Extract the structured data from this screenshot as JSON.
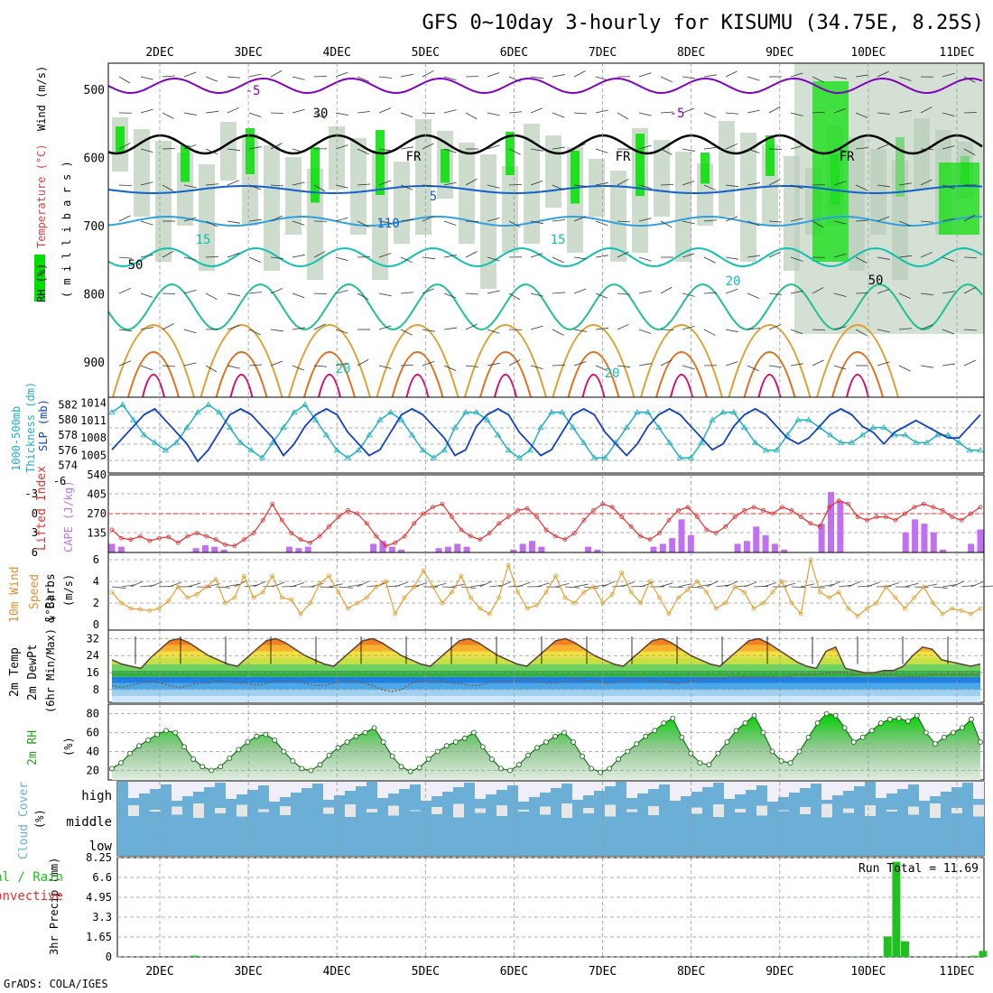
{
  "title": "GFS 0~10day 3-hourly for KISUMU (34.75E, 8.25S)",
  "footer": "GrADS: COLA/IGES",
  "date_labels": [
    "2DEC",
    "3DEC",
    "4DEC",
    "5DEC",
    "6DEC",
    "7DEC",
    "8DEC",
    "9DEC",
    "10DEC",
    "11DEC"
  ],
  "colors": {
    "rh_green": "#00e000",
    "temp_purple": "#8000c0",
    "temp_blue": "#1060d0",
    "temp_cyan": "#10c0b0",
    "cape_purple": "#c070f0",
    "lifted_red": "#e03030",
    "wind_orange": "#e0a030",
    "cloud_blue": "#6baed6",
    "rain_green": "#20c020"
  },
  "chart_data": [
    {
      "type": "heatmap",
      "panel": "upper-air",
      "ylabel_parts": [
        "RH (%)",
        "Temperature (°C)",
        "Wind (m/s)"
      ],
      "ylabel_units": "( m i l l i b a r s )",
      "y_ticks": [
        500,
        600,
        700,
        800,
        900
      ],
      "contour_labels": [
        "-5",
        "-5",
        "5",
        "110",
        "15",
        "15",
        "20",
        "20",
        "20",
        "FR",
        "FR",
        "FR",
        "30",
        "50",
        "50"
      ]
    },
    {
      "type": "line",
      "panel": "slp-thickness",
      "ylabel_left": "Thickness (dm)",
      "ylabel_left_parts": [
        "1000-500mb",
        "Thickness (dm)"
      ],
      "ylabel_right": "SLP (mb)",
      "left_ticks": [
        582,
        580,
        578,
        576,
        574
      ],
      "right_ticks": [
        1014,
        1011,
        1008,
        1005
      ],
      "series": [
        {
          "name": "SLP (mb)",
          "values": [
            1006,
            1008,
            1010,
            1012,
            1013,
            1011,
            1009,
            1007,
            1004,
            1006,
            1009,
            1012,
            1013,
            1012,
            1010,
            1008,
            1005,
            1007,
            1010,
            1012,
            1013,
            1012,
            1009,
            1007,
            1005,
            1006,
            1009,
            1012,
            1013,
            1012,
            1010,
            1008,
            1005,
            1006,
            1010,
            1012,
            1013,
            1012,
            1009,
            1007,
            1005,
            1006,
            1009,
            1012,
            1013,
            1012,
            1009,
            1007,
            1005,
            1007,
            1010,
            1012,
            1013,
            1012,
            1010,
            1008,
            1006,
            1007,
            1010,
            1012,
            1013,
            1012,
            1010,
            1008,
            1007,
            1008,
            1010,
            1012,
            1013,
            1012,
            1010,
            1009,
            1007,
            1009,
            1010,
            1011,
            1010,
            1009,
            1008,
            1008,
            1010,
            1012
          ]
        },
        {
          "name": "1000-500mb Thickness (dm)",
          "values": [
            581,
            582,
            580,
            578,
            577,
            576,
            577,
            579,
            581,
            582,
            581,
            579,
            577,
            576,
            575,
            577,
            579,
            581,
            582,
            580,
            578,
            576,
            575,
            576,
            578,
            580,
            581,
            580,
            578,
            576,
            575,
            576,
            579,
            581,
            581,
            580,
            578,
            576,
            575,
            576,
            579,
            581,
            581,
            579,
            577,
            575,
            575,
            577,
            579,
            581,
            581,
            579,
            577,
            575,
            575,
            577,
            580,
            581,
            581,
            579,
            577,
            576,
            576,
            578,
            580,
            580,
            579,
            578,
            577,
            577,
            578,
            579,
            579,
            578,
            578,
            577,
            577,
            578,
            578,
            577,
            576,
            576
          ]
        }
      ]
    },
    {
      "type": "bar",
      "panel": "cape-lifted-index",
      "ylabel_left": "Lifted Index",
      "ylabel_right": "CAPE (J/kg)",
      "left_ticks": [
        "-3",
        "0",
        "3",
        "6"
      ],
      "left_top_label": "-6",
      "right_ticks": [
        540,
        405,
        270,
        135
      ],
      "ylim": [
        0,
        540
      ],
      "series": [
        {
          "name": "CAPE (J/kg)",
          "values": [
            60,
            40,
            0,
            0,
            0,
            0,
            0,
            0,
            0,
            30,
            50,
            40,
            20,
            0,
            0,
            0,
            0,
            0,
            0,
            40,
            30,
            40,
            0,
            0,
            0,
            0,
            0,
            0,
            60,
            80,
            40,
            20,
            0,
            0,
            0,
            30,
            40,
            60,
            40,
            0,
            0,
            0,
            0,
            20,
            60,
            80,
            40,
            0,
            0,
            0,
            0,
            40,
            20,
            0,
            0,
            0,
            0,
            0,
            40,
            60,
            100,
            230,
            120,
            0,
            0,
            0,
            0,
            60,
            80,
            180,
            120,
            60,
            20,
            0,
            0,
            0,
            200,
            420,
            360,
            0,
            0,
            0,
            0,
            0,
            0,
            140,
            230,
            200,
            140,
            20,
            0,
            0,
            60,
            160
          ]
        },
        {
          "name": "Lifted Index",
          "values": [
            2.5,
            3.8,
            4,
            3.5,
            4.2,
            3.8,
            3.6,
            4.5,
            3.5,
            3.0,
            3.5,
            4.0,
            4.8,
            5.0,
            4.0,
            3.0,
            1.0,
            -1.5,
            1.0,
            3.0,
            4.0,
            4.5,
            3.5,
            2.0,
            0.5,
            -0.5,
            0,
            1.5,
            3.5,
            5.0,
            4.5,
            3.5,
            1.5,
            0,
            -1.0,
            -1.5,
            0.5,
            2.5,
            3.5,
            4.0,
            3.0,
            1.5,
            0.5,
            -0.5,
            -0.8,
            0.5,
            2.5,
            3.5,
            4.0,
            3.0,
            1.0,
            -0.5,
            -1.5,
            -1.0,
            0.5,
            2.0,
            3.5,
            4.0,
            3.0,
            1.0,
            -0.5,
            -1.0,
            0.5,
            2.5,
            3.0,
            2.0,
            0.5,
            -0.5,
            -1.0,
            -0.5,
            0,
            -1.0,
            -0.5,
            0.5,
            1.5,
            2.0,
            -1.0,
            -2.0,
            -1.5,
            0.5,
            1.0,
            0.5,
            0.5,
            1.0,
            0,
            -1.0,
            -1.5,
            -1.0,
            -0.5,
            0.5,
            1.0,
            0,
            -1.0
          ]
        }
      ]
    },
    {
      "type": "line",
      "panel": "wind-10m",
      "ylabel_parts": [
        "10m Wind",
        "Speed",
        "& Barbs",
        "(m/s)"
      ],
      "y_ticks": [
        6,
        4,
        2,
        0
      ],
      "ylim": [
        0,
        6
      ],
      "series": [
        {
          "name": "10m Wind Speed",
          "values": [
            3.0,
            2.0,
            1.5,
            1.4,
            1.3,
            1.5,
            2.2,
            3.5,
            2.5,
            2.8,
            3.5,
            4.2,
            2.0,
            2.5,
            4.5,
            2.5,
            3.0,
            4.5,
            2.5,
            2.3,
            1.0,
            2.0,
            3.8,
            4.5,
            3.0,
            1.5,
            2.0,
            2.5,
            3.5,
            4.0,
            1.0,
            2.5,
            3.5,
            5.0,
            3.5,
            2.0,
            3.0,
            4.5,
            2.5,
            1.5,
            1.0,
            2.5,
            5.5,
            3.0,
            1.5,
            1.8,
            3.0,
            4.5,
            2.5,
            2.0,
            3.0,
            3.5,
            2.0,
            2.8,
            4.8,
            3.0,
            2.0,
            4.0,
            2.5,
            1.0,
            2.5,
            3.2,
            4.0,
            3.0,
            1.5,
            2.0,
            3.5,
            3.0,
            1.5,
            2.0,
            3.0,
            4.0,
            2.0,
            1.0,
            6.0,
            3.0,
            2.5,
            3.0,
            1.5,
            0.8,
            1.5,
            2.0,
            3.5,
            2.5,
            1.5,
            2.5,
            3.5,
            2.0,
            1.0,
            1.5,
            1.3,
            1.0,
            1.5
          ]
        }
      ]
    },
    {
      "type": "area",
      "panel": "temp-2m",
      "ylabel_parts": [
        "2m Temp",
        "2m DewPt",
        "(6hr Min/Max) (°C)"
      ],
      "y_ticks": [
        32,
        24,
        16,
        8
      ],
      "ylim": [
        2,
        36
      ],
      "series": [
        {
          "name": "2m Temp",
          "values": [
            22,
            20,
            19,
            18,
            23,
            27,
            31,
            32,
            30,
            27,
            24,
            22,
            20,
            19,
            23,
            27,
            31,
            32,
            30,
            27,
            24,
            22,
            20,
            19,
            23,
            27,
            31,
            32,
            30,
            27,
            24,
            22,
            20,
            19,
            23,
            27,
            31,
            32,
            30,
            27,
            24,
            22,
            20,
            19,
            23,
            27,
            31,
            32,
            30,
            27,
            24,
            22,
            20,
            19,
            23,
            27,
            31,
            32,
            30,
            27,
            24,
            22,
            20,
            19,
            23,
            27,
            31,
            32,
            30,
            27,
            24,
            21,
            19,
            18,
            26,
            28,
            18,
            17,
            16,
            16,
            17,
            17,
            19,
            24,
            28,
            27,
            22,
            21,
            20,
            19,
            20
          ]
        },
        {
          "name": "2m DewPt",
          "values": [
            10,
            9,
            10,
            11,
            12,
            11,
            10,
            9,
            10,
            11,
            11,
            12,
            12,
            11,
            11,
            10,
            11,
            12,
            12,
            12,
            11,
            10,
            10,
            11,
            12,
            12,
            11,
            10,
            8,
            7,
            8,
            11,
            12,
            12,
            12,
            11,
            11,
            10,
            10,
            11,
            12,
            12,
            12,
            13,
            12,
            11,
            11,
            12,
            13,
            12,
            12,
            11,
            11,
            12,
            13,
            13,
            12,
            12,
            11,
            11,
            12,
            13,
            13,
            13,
            14,
            14,
            14,
            14,
            14,
            14,
            14,
            15,
            15,
            15,
            16,
            16,
            16,
            15,
            15,
            15,
            15,
            15,
            14,
            14,
            14,
            15,
            15,
            15,
            15,
            15,
            15
          ]
        }
      ]
    },
    {
      "type": "area",
      "panel": "rh-2m",
      "ylabel_parts": [
        "2m RH",
        "(%)"
      ],
      "y_ticks": [
        80,
        60,
        40,
        20
      ],
      "ylim": [
        10,
        90
      ],
      "series": [
        {
          "name": "2m RH",
          "values": [
            22,
            28,
            38,
            46,
            52,
            58,
            62,
            60,
            45,
            32,
            24,
            20,
            24,
            33,
            42,
            50,
            56,
            58,
            52,
            40,
            30,
            22,
            20,
            26,
            36,
            44,
            50,
            56,
            60,
            65,
            50,
            35,
            24,
            19,
            23,
            32,
            40,
            46,
            50,
            54,
            60,
            45,
            32,
            22,
            20,
            26,
            36,
            44,
            50,
            56,
            60,
            50,
            35,
            22,
            18,
            22,
            32,
            40,
            48,
            56,
            62,
            70,
            75,
            55,
            38,
            28,
            26,
            38,
            50,
            62,
            70,
            78,
            60,
            40,
            30,
            28,
            40,
            55,
            70,
            80,
            78,
            65,
            50,
            55,
            62,
            70,
            74,
            75,
            72,
            78,
            60,
            48,
            55,
            60,
            65,
            74,
            50
          ]
        }
      ]
    },
    {
      "type": "heatmap",
      "panel": "cloud-cover",
      "ylabel_parts": [
        "Cloud Cover",
        "(%)"
      ],
      "levels": [
        "high",
        "middle",
        "low"
      ]
    },
    {
      "type": "bar",
      "panel": "precip-3hr",
      "ylabel_parts": [
        "3hr Precip (mm)",
        "Total / Rain",
        "Convective"
      ],
      "y_ticks": [
        "8.25",
        "6.6",
        "4.95",
        "3.3",
        "1.65",
        "0"
      ],
      "ylim": [
        0,
        8.25
      ],
      "run_total_text": "Run Total = 11.69",
      "series": [
        {
          "name": "Total",
          "points": [
            [
              8.0,
              0.1
            ],
            [
              88.0,
              1.7
            ],
            [
              89.0,
              7.9
            ],
            [
              90.0,
              1.3
            ],
            [
              84.0,
              0.05
            ],
            [
              98.0,
              0.1
            ],
            [
              99.0,
              0.5
            ]
          ]
        }
      ]
    }
  ]
}
